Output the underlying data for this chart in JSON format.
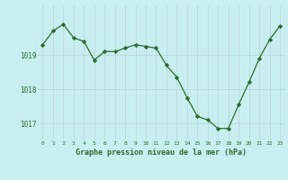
{
  "x": [
    0,
    1,
    2,
    3,
    4,
    5,
    6,
    7,
    8,
    9,
    10,
    11,
    12,
    13,
    14,
    15,
    16,
    17,
    18,
    19,
    20,
    21,
    22,
    23
  ],
  "y": [
    1019.3,
    1019.7,
    1019.9,
    1019.5,
    1019.4,
    1018.85,
    1019.1,
    1019.1,
    1019.2,
    1019.3,
    1019.25,
    1019.2,
    1018.7,
    1018.35,
    1017.75,
    1017.2,
    1017.1,
    1016.85,
    1016.85,
    1017.55,
    1018.2,
    1018.9,
    1019.45,
    1019.85
  ],
  "line_color": "#2d6a2d",
  "marker_color": "#2d6a2d",
  "bg_color": "#c8eef0",
  "grid_color": "#b8d4d4",
  "xlabel": "Graphe pression niveau de la mer (hPa)",
  "xlabel_color": "#2d6a2d",
  "tick_color": "#2d6a2d",
  "ylim": [
    1016.5,
    1020.45
  ],
  "yticks": [
    1017,
    1018,
    1019
  ],
  "xticks": [
    0,
    1,
    2,
    3,
    4,
    5,
    6,
    7,
    8,
    9,
    10,
    11,
    12,
    13,
    14,
    15,
    16,
    17,
    18,
    19,
    20,
    21,
    22,
    23
  ]
}
